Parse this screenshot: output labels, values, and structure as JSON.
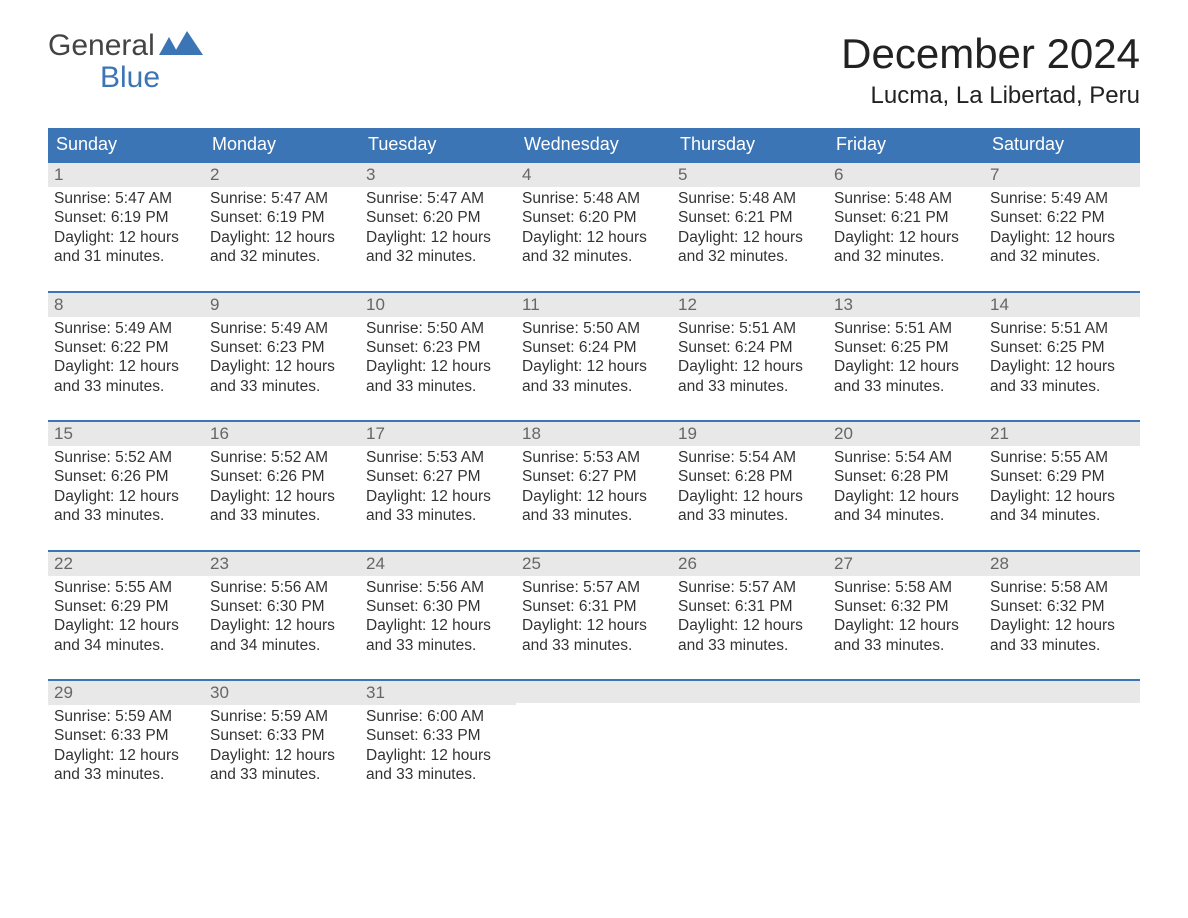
{
  "logo": {
    "top": "General",
    "bottom": "Blue",
    "flag_color": "#3b75b5"
  },
  "title": "December 2024",
  "location": "Lucma, La Libertad, Peru",
  "colors": {
    "header_bg": "#3b75b5",
    "header_text": "#ffffff",
    "week_border": "#3b75b5",
    "daynum_bg": "#e8e8e8",
    "text": "#333333",
    "background": "#ffffff"
  },
  "fonts": {
    "title_size_pt": 32,
    "location_size_pt": 18,
    "dow_size_pt": 14,
    "body_size_pt": 12
  },
  "days_of_week": [
    "Sunday",
    "Monday",
    "Tuesday",
    "Wednesday",
    "Thursday",
    "Friday",
    "Saturday"
  ],
  "weeks": [
    [
      {
        "num": "1",
        "sunrise": "5:47 AM",
        "sunset": "6:19 PM",
        "daylight": "12 hours and 31 minutes."
      },
      {
        "num": "2",
        "sunrise": "5:47 AM",
        "sunset": "6:19 PM",
        "daylight": "12 hours and 32 minutes."
      },
      {
        "num": "3",
        "sunrise": "5:47 AM",
        "sunset": "6:20 PM",
        "daylight": "12 hours and 32 minutes."
      },
      {
        "num": "4",
        "sunrise": "5:48 AM",
        "sunset": "6:20 PM",
        "daylight": "12 hours and 32 minutes."
      },
      {
        "num": "5",
        "sunrise": "5:48 AM",
        "sunset": "6:21 PM",
        "daylight": "12 hours and 32 minutes."
      },
      {
        "num": "6",
        "sunrise": "5:48 AM",
        "sunset": "6:21 PM",
        "daylight": "12 hours and 32 minutes."
      },
      {
        "num": "7",
        "sunrise": "5:49 AM",
        "sunset": "6:22 PM",
        "daylight": "12 hours and 32 minutes."
      }
    ],
    [
      {
        "num": "8",
        "sunrise": "5:49 AM",
        "sunset": "6:22 PM",
        "daylight": "12 hours and 33 minutes."
      },
      {
        "num": "9",
        "sunrise": "5:49 AM",
        "sunset": "6:23 PM",
        "daylight": "12 hours and 33 minutes."
      },
      {
        "num": "10",
        "sunrise": "5:50 AM",
        "sunset": "6:23 PM",
        "daylight": "12 hours and 33 minutes."
      },
      {
        "num": "11",
        "sunrise": "5:50 AM",
        "sunset": "6:24 PM",
        "daylight": "12 hours and 33 minutes."
      },
      {
        "num": "12",
        "sunrise": "5:51 AM",
        "sunset": "6:24 PM",
        "daylight": "12 hours and 33 minutes."
      },
      {
        "num": "13",
        "sunrise": "5:51 AM",
        "sunset": "6:25 PM",
        "daylight": "12 hours and 33 minutes."
      },
      {
        "num": "14",
        "sunrise": "5:51 AM",
        "sunset": "6:25 PM",
        "daylight": "12 hours and 33 minutes."
      }
    ],
    [
      {
        "num": "15",
        "sunrise": "5:52 AM",
        "sunset": "6:26 PM",
        "daylight": "12 hours and 33 minutes."
      },
      {
        "num": "16",
        "sunrise": "5:52 AM",
        "sunset": "6:26 PM",
        "daylight": "12 hours and 33 minutes."
      },
      {
        "num": "17",
        "sunrise": "5:53 AM",
        "sunset": "6:27 PM",
        "daylight": "12 hours and 33 minutes."
      },
      {
        "num": "18",
        "sunrise": "5:53 AM",
        "sunset": "6:27 PM",
        "daylight": "12 hours and 33 minutes."
      },
      {
        "num": "19",
        "sunrise": "5:54 AM",
        "sunset": "6:28 PM",
        "daylight": "12 hours and 33 minutes."
      },
      {
        "num": "20",
        "sunrise": "5:54 AM",
        "sunset": "6:28 PM",
        "daylight": "12 hours and 34 minutes."
      },
      {
        "num": "21",
        "sunrise": "5:55 AM",
        "sunset": "6:29 PM",
        "daylight": "12 hours and 34 minutes."
      }
    ],
    [
      {
        "num": "22",
        "sunrise": "5:55 AM",
        "sunset": "6:29 PM",
        "daylight": "12 hours and 34 minutes."
      },
      {
        "num": "23",
        "sunrise": "5:56 AM",
        "sunset": "6:30 PM",
        "daylight": "12 hours and 34 minutes."
      },
      {
        "num": "24",
        "sunrise": "5:56 AM",
        "sunset": "6:30 PM",
        "daylight": "12 hours and 33 minutes."
      },
      {
        "num": "25",
        "sunrise": "5:57 AM",
        "sunset": "6:31 PM",
        "daylight": "12 hours and 33 minutes."
      },
      {
        "num": "26",
        "sunrise": "5:57 AM",
        "sunset": "6:31 PM",
        "daylight": "12 hours and 33 minutes."
      },
      {
        "num": "27",
        "sunrise": "5:58 AM",
        "sunset": "6:32 PM",
        "daylight": "12 hours and 33 minutes."
      },
      {
        "num": "28",
        "sunrise": "5:58 AM",
        "sunset": "6:32 PM",
        "daylight": "12 hours and 33 minutes."
      }
    ],
    [
      {
        "num": "29",
        "sunrise": "5:59 AM",
        "sunset": "6:33 PM",
        "daylight": "12 hours and 33 minutes."
      },
      {
        "num": "30",
        "sunrise": "5:59 AM",
        "sunset": "6:33 PM",
        "daylight": "12 hours and 33 minutes."
      },
      {
        "num": "31",
        "sunrise": "6:00 AM",
        "sunset": "6:33 PM",
        "daylight": "12 hours and 33 minutes."
      },
      null,
      null,
      null,
      null
    ]
  ],
  "labels": {
    "sunrise": "Sunrise:",
    "sunset": "Sunset:",
    "daylight": "Daylight:"
  }
}
